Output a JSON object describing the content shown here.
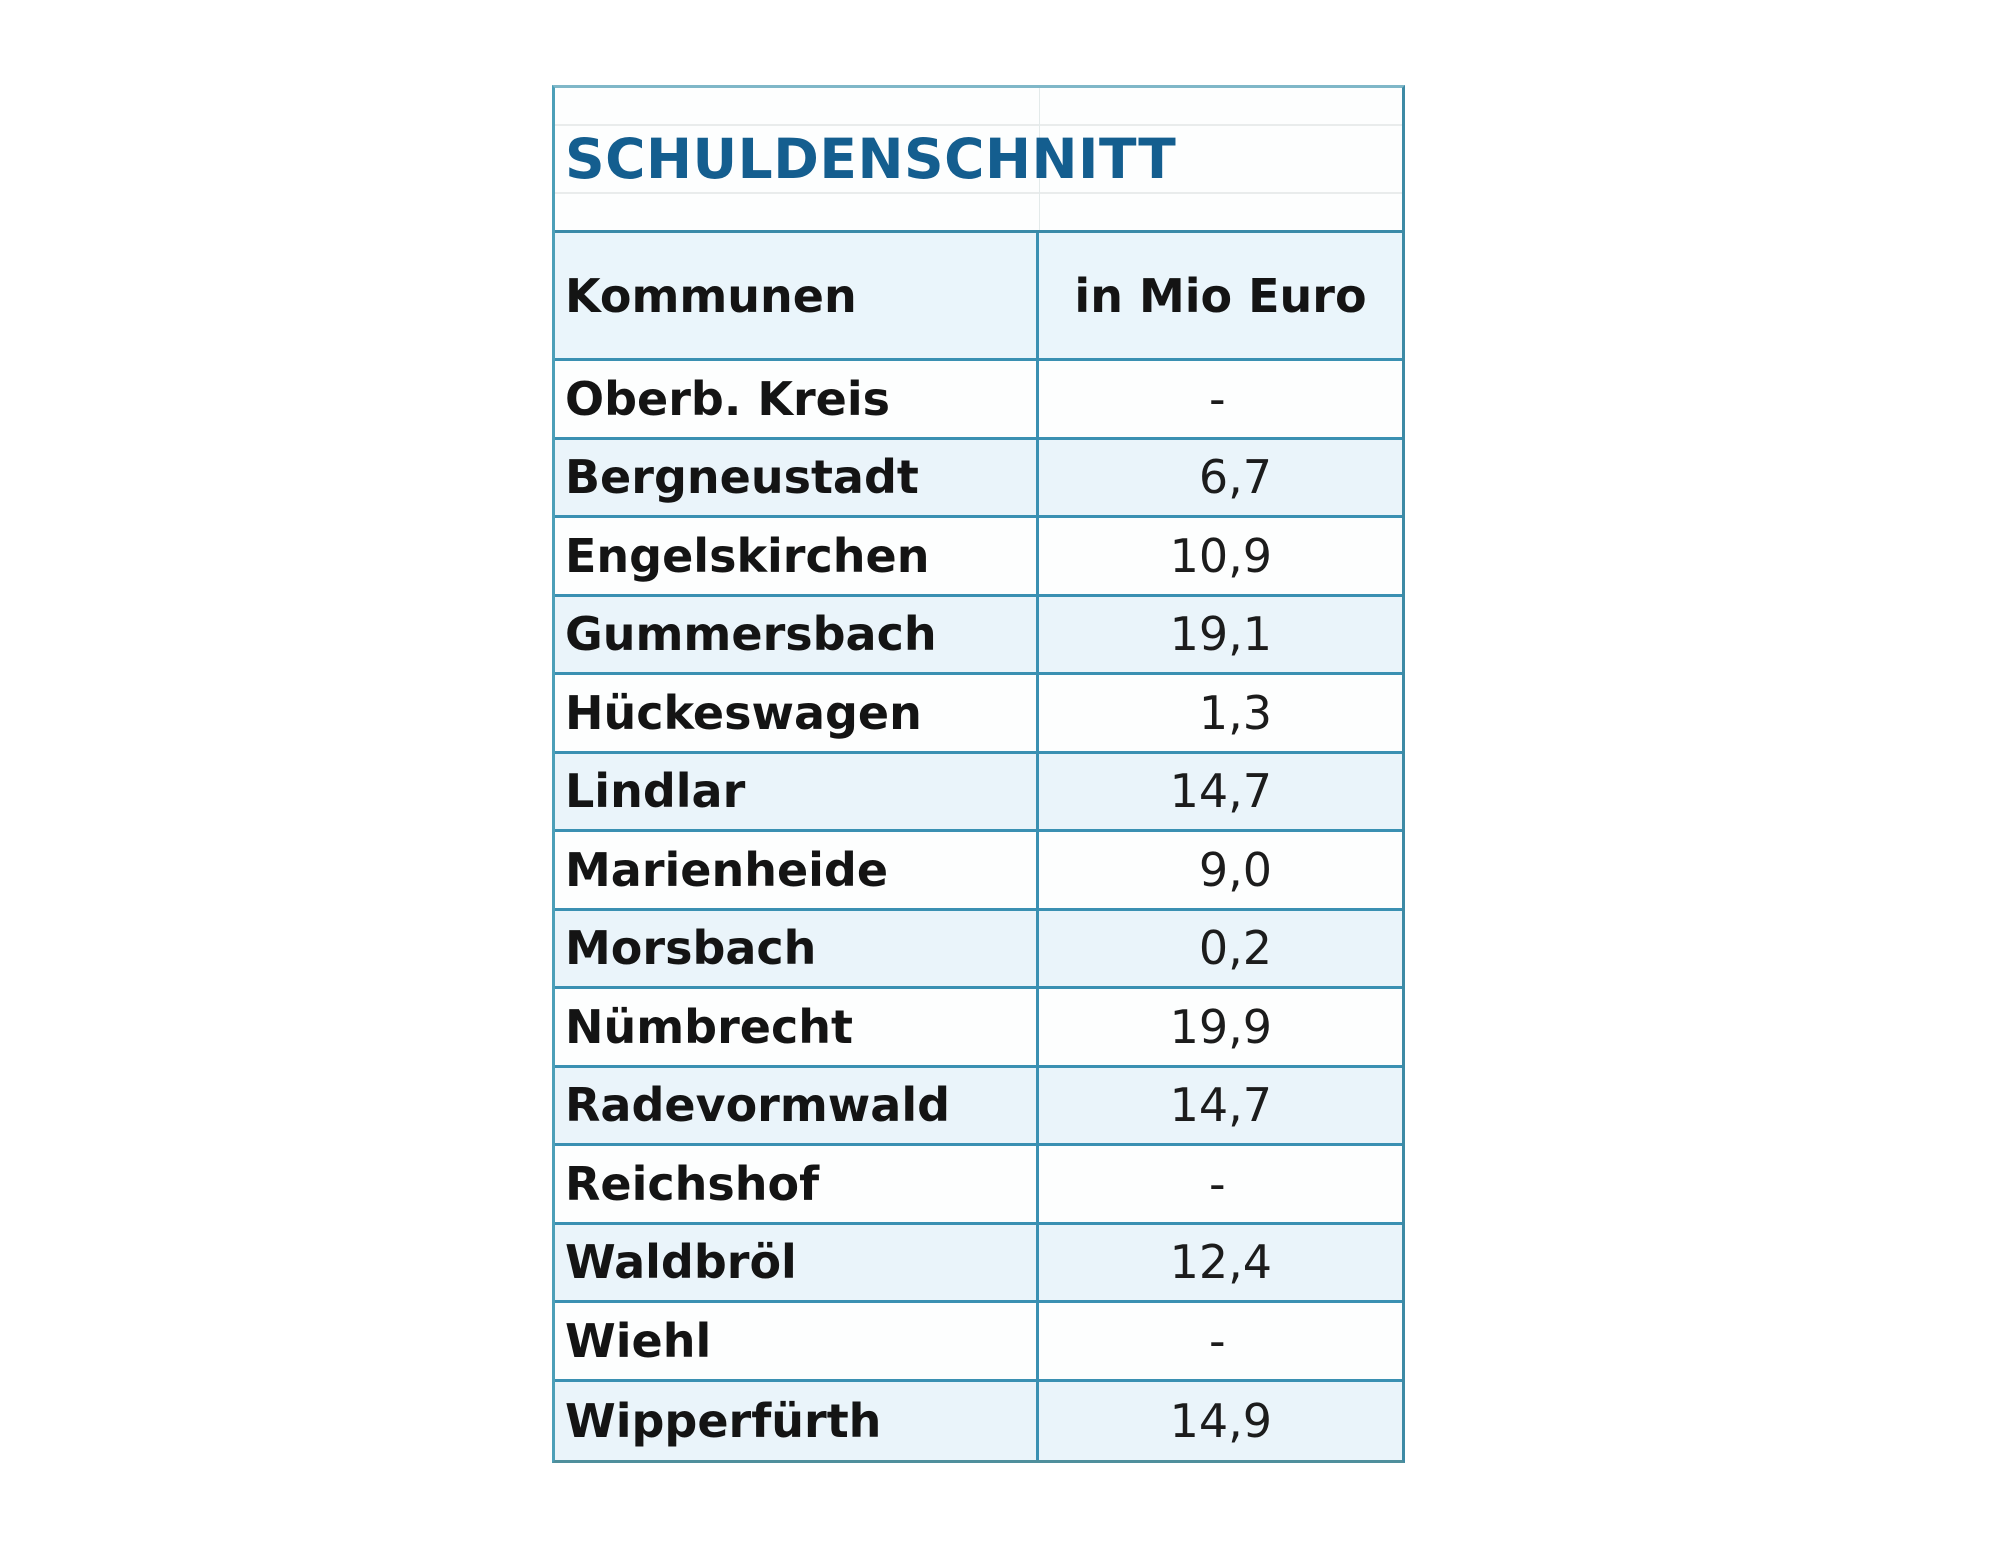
{
  "table": {
    "title": "SCHULDENSCHNITT",
    "headers": [
      "Kommunen",
      "in Mio Euro"
    ],
    "rows": [
      {
        "name": "Oberb. Kreis",
        "value": "-"
      },
      {
        "name": "Bergneustadt",
        "value": "6,7"
      },
      {
        "name": "Engelskirchen",
        "value": "10,9"
      },
      {
        "name": "Gummersbach",
        "value": "19,1"
      },
      {
        "name": "Hückeswagen",
        "value": "1,3"
      },
      {
        "name": "Lindlar",
        "value": "14,7"
      },
      {
        "name": "Marienheide",
        "value": "9,0"
      },
      {
        "name": "Morsbach",
        "value": "0,2"
      },
      {
        "name": "Nümbrecht",
        "value": "19,9"
      },
      {
        "name": "Radevormwald",
        "value": "14,7"
      },
      {
        "name": "Reichshof",
        "value": "-"
      },
      {
        "name": "Waldbröl",
        "value": "12,4"
      },
      {
        "name": "Wiehl",
        "value": "-"
      },
      {
        "name": "Wipperfürth",
        "value": "14,9"
      }
    ]
  },
  "colors": {
    "title": "#145e8f",
    "border": "#3a90b2",
    "shaded_row": "#eaf4fa"
  }
}
